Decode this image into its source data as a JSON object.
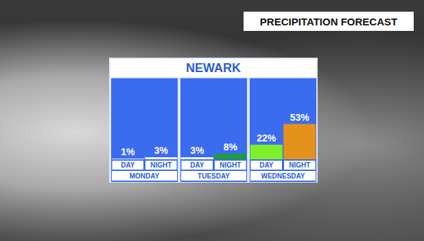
{
  "chart_data": {
    "type": "bar",
    "title": "NEWARK",
    "subtitle": "PRECIPITATION FORECAST",
    "groups": [
      "MONDAY",
      "TUESDAY",
      "WEDNESDAY"
    ],
    "categories": [
      "DAY",
      "NIGHT",
      "DAY",
      "NIGHT",
      "DAY",
      "NIGHT"
    ],
    "values": [
      1,
      3,
      3,
      8,
      22,
      53
    ],
    "value_labels": [
      "1%",
      "3%",
      "3%",
      "8%",
      "22%",
      "53%"
    ],
    "colors": [
      "#f4f6ff",
      "#f4f6ff",
      "#f4f6ff",
      "#1e9e3a",
      "#7df02a",
      "#e3921c"
    ],
    "ylim": [
      0,
      100
    ],
    "data_labels": true,
    "tick_labels": "x"
  }
}
